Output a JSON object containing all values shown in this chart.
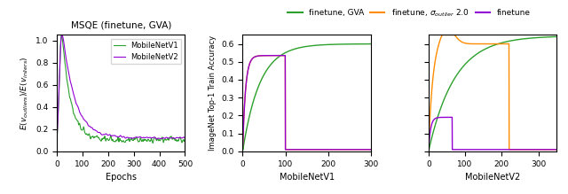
{
  "title_left": "MSQE (finetune, GVA)",
  "ylabel_left": "E(v_outliers)/E(v_inliers)",
  "xlabel_left": "Epochs",
  "xlabel_mid": "MobileNetV1",
  "xlabel_right": "MobileNetV2",
  "ylabel_mid": "ImageNet Top-1 Train Accuracy",
  "legend_left": [
    "MobileNetV1",
    "MobileNetV2"
  ],
  "legend_colors_left": [
    "#2ca02c",
    "#9400d3"
  ],
  "legend_top": [
    "finetune, GVA",
    "finetune, σ_outlier 2.0",
    "finetune"
  ],
  "legend_top_colors": [
    "#2ca02c",
    "#ff8c00",
    "#9400d3"
  ],
  "xlim_left": [
    0,
    500
  ],
  "ylim_left": [
    0.0,
    1.05
  ],
  "xlim_mid": [
    0,
    300
  ],
  "ylim_mid": [
    0.0,
    0.65
  ],
  "xlim_right": [
    0,
    350
  ],
  "ylim_right": [
    0.0,
    0.65
  ]
}
